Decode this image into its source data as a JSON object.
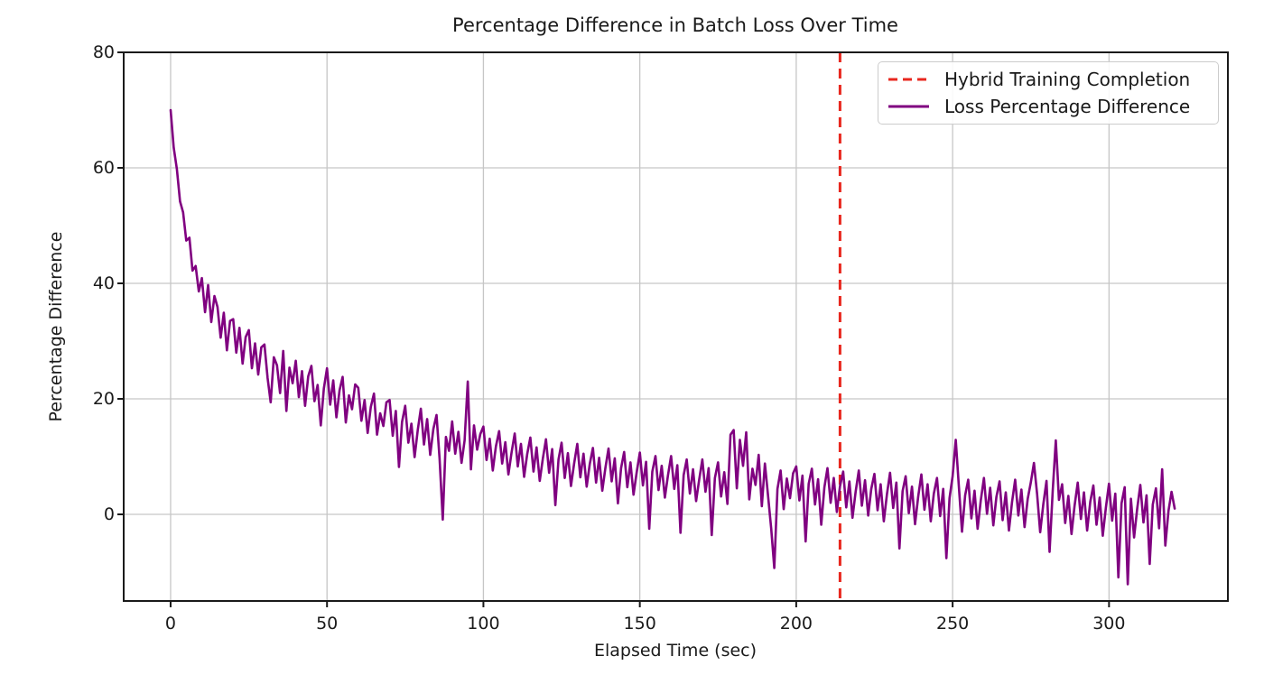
{
  "figure": {
    "background": "#ffffff",
    "text_color": "#1a1a1a",
    "grid_color": "#c6c6c6",
    "spine_color": "#1a1a1a"
  },
  "legend": {
    "entries": [
      {
        "label": "Hybrid Training Completion",
        "color": "#e8271e",
        "style": "dashed"
      },
      {
        "label": "Loss Percentage Difference",
        "color": "#800080",
        "style": "solid"
      }
    ]
  },
  "chart_data": {
    "type": "line",
    "title": "Percentage Difference in Batch Loss Over Time",
    "xlabel": "Elapsed Time (sec)",
    "ylabel": "Percentage Difference",
    "xlim": [
      -15,
      338
    ],
    "ylim": [
      -15,
      80
    ],
    "xticks": [
      0,
      50,
      100,
      150,
      200,
      250,
      300
    ],
    "yticks": [
      0,
      20,
      40,
      60,
      80
    ],
    "grid": true,
    "legend_position": "upper right",
    "vline": {
      "name": "Hybrid Training Completion",
      "x": 214,
      "color": "#e8271e",
      "style": "dashed",
      "dash_pattern": [
        11,
        7
      ],
      "line_width": 3
    },
    "series": [
      {
        "name": "Loss Percentage Difference",
        "color": "#800080",
        "style": "solid",
        "line_width": 2.6,
        "x_start": 0,
        "x_step": 1,
        "y": [
          70.0,
          63.5,
          59.8,
          54.2,
          52.3,
          47.4,
          47.9,
          42.2,
          43.0,
          38.6,
          40.9,
          35.0,
          39.7,
          33.3,
          37.8,
          35.9,
          30.6,
          34.9,
          28.4,
          33.5,
          33.8,
          28.0,
          32.3,
          26.1,
          30.7,
          31.9,
          25.3,
          29.6,
          24.2,
          28.9,
          29.4,
          23.6,
          19.4,
          27.2,
          25.8,
          21.0,
          28.3,
          17.9,
          25.4,
          22.7,
          26.6,
          20.3,
          24.8,
          18.8,
          23.9,
          25.7,
          19.6,
          22.4,
          15.4,
          21.8,
          25.3,
          19.0,
          23.2,
          16.8,
          21.5,
          23.8,
          15.9,
          20.6,
          18.2,
          22.5,
          21.9,
          16.2,
          19.8,
          14.1,
          18.6,
          20.9,
          13.8,
          17.5,
          15.3,
          19.4,
          19.8,
          13.6,
          17.9,
          8.2,
          16.0,
          18.8,
          12.4,
          15.7,
          9.9,
          14.6,
          18.3,
          12.1,
          16.5,
          10.3,
          14.8,
          17.2,
          9.6,
          -0.9,
          13.4,
          11.0,
          16.1,
          10.5,
          14.3,
          8.9,
          12.8,
          23.0,
          7.8,
          15.4,
          11.2,
          13.9,
          15.2,
          9.4,
          13.1,
          7.6,
          11.8,
          14.4,
          8.8,
          12.5,
          6.9,
          10.7,
          14.0,
          8.3,
          12.2,
          6.5,
          10.4,
          13.3,
          7.4,
          11.6,
          5.8,
          9.7,
          13.0,
          7.2,
          11.3,
          1.6,
          9.5,
          12.4,
          6.3,
          10.6,
          4.9,
          8.8,
          12.2,
          6.4,
          10.5,
          4.8,
          8.7,
          11.5,
          5.5,
          9.8,
          4.1,
          8.0,
          11.4,
          5.7,
          9.7,
          1.9,
          8.0,
          10.8,
          4.7,
          9.0,
          3.4,
          7.3,
          10.7,
          5.0,
          9.1,
          -2.5,
          7.4,
          10.1,
          4.2,
          8.4,
          2.9,
          6.7,
          10.1,
          4.4,
          8.5,
          -3.2,
          6.8,
          9.5,
          3.6,
          7.8,
          2.3,
          6.1,
          9.5,
          3.9,
          8.0,
          -3.6,
          6.3,
          9.0,
          3.1,
          7.3,
          1.8,
          13.8,
          14.6,
          4.5,
          12.9,
          8.4,
          14.2,
          2.6,
          7.9,
          5.1,
          10.3,
          1.4,
          8.8,
          3.2,
          -2.5,
          -9.3,
          4.4,
          7.6,
          0.9,
          6.2,
          2.8,
          7.1,
          8.3,
          2.4,
          6.7,
          -4.7,
          5.3,
          7.9,
          1.7,
          6.1,
          -1.8,
          4.7,
          8.0,
          2.0,
          6.3,
          0.4,
          4.9,
          7.4,
          1.2,
          5.7,
          -0.6,
          3.9,
          7.6,
          1.5,
          5.9,
          -0.2,
          4.4,
          7.0,
          0.7,
          5.2,
          -1.2,
          3.5,
          7.2,
          1.1,
          5.5,
          -5.9,
          4.0,
          6.6,
          0.2,
          4.8,
          -1.7,
          3.1,
          6.9,
          0.8,
          5.2,
          -1.2,
          3.6,
          6.3,
          -0.3,
          4.4,
          -7.6,
          2.8,
          6.6,
          12.9,
          4.9,
          -3.0,
          3.3,
          6.0,
          -0.7,
          4.1,
          -2.5,
          2.4,
          6.3,
          0.1,
          4.6,
          -1.9,
          3.0,
          5.7,
          -1.0,
          3.8,
          -2.8,
          2.1,
          6.0,
          -0.2,
          4.3,
          -2.2,
          2.7,
          5.5,
          8.9,
          3.5,
          -3.1,
          1.8,
          5.8,
          -6.5,
          4.1,
          12.8,
          2.5,
          5.2,
          -1.5,
          3.2,
          -3.4,
          1.5,
          5.5,
          -0.8,
          3.8,
          -2.8,
          2.2,
          5.0,
          -1.8,
          2.9,
          -3.7,
          1.2,
          5.3,
          -1.1,
          3.6,
          -10.9,
          1.9,
          4.7,
          -12.1,
          2.7,
          -4.0,
          0.9,
          5.1,
          -1.4,
          3.3,
          -8.6,
          1.7,
          4.5,
          -2.4,
          7.8,
          -5.4,
          0.6,
          3.9,
          1.0
        ]
      }
    ]
  }
}
